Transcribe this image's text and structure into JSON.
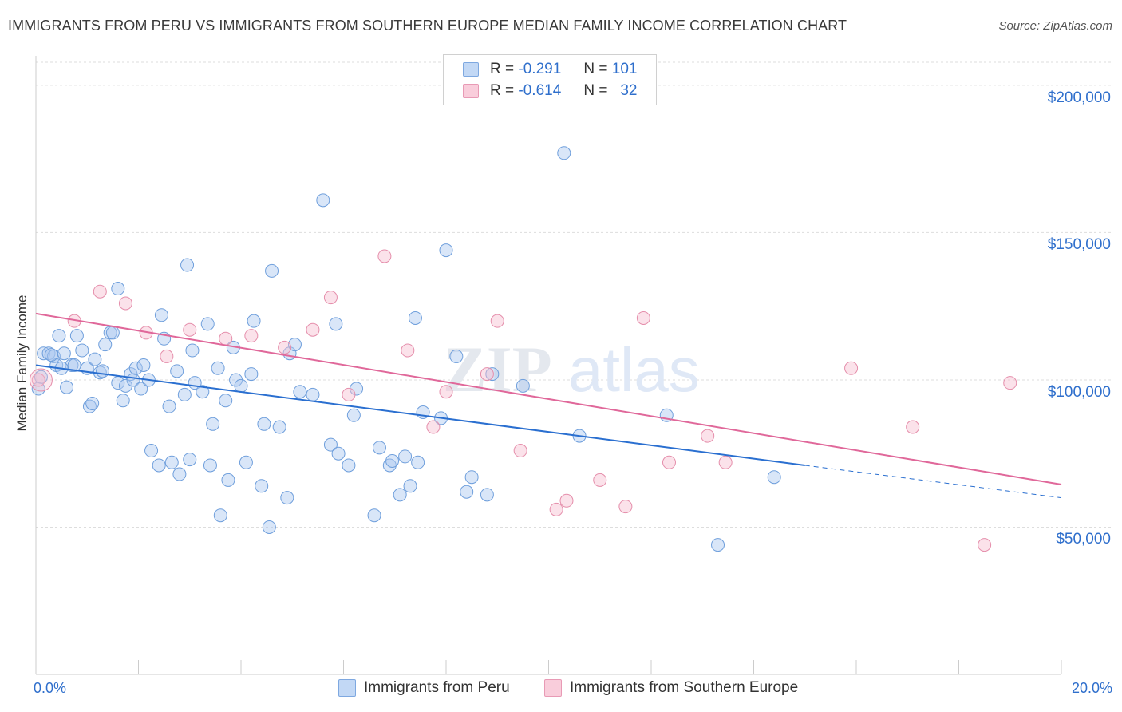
{
  "title": "IMMIGRANTS FROM PERU VS IMMIGRANTS FROM SOUTHERN EUROPE MEDIAN FAMILY INCOME CORRELATION CHART",
  "source": "Source: ZipAtlas.com",
  "watermark": {
    "zip": "ZIP",
    "atlas": "atlas"
  },
  "legend": {
    "r_label": "R =",
    "n_label": "N =",
    "peru": {
      "r": "-0.291",
      "n": "101"
    },
    "seurope": {
      "r": "-0.614",
      "n": "32"
    }
  },
  "colors": {
    "peru_fill": "#aac8f0",
    "peru_stroke": "#6f9fdc",
    "peru_line": "#2a6fd0",
    "seurope_fill": "#f7bfd1",
    "seurope_stroke": "#e58eab",
    "seurope_line": "#e0689a",
    "tick_text": "#2f6fcc",
    "grid": "#dddddd"
  },
  "chart_data": {
    "type": "scatter",
    "title": "IMMIGRANTS FROM PERU VS IMMIGRANTS FROM SOUTHERN EUROPE MEDIAN FAMILY INCOME CORRELATION CHART",
    "xlabel": "",
    "ylabel": "Median Family Income",
    "xlim": [
      0,
      20
    ],
    "ylim": [
      0,
      210000
    ],
    "x_tick_labels": [
      "0.0%",
      "20.0%"
    ],
    "y_ticks": [
      50000,
      100000,
      150000,
      200000
    ],
    "y_tick_labels": [
      "$50,000",
      "$100,000",
      "$150,000",
      "$200,000"
    ],
    "grid": true,
    "legend_position": "top-center",
    "series": [
      {
        "name": "Immigrants from Peru",
        "trend": {
          "x": [
            0,
            15
          ],
          "y": [
            105000,
            71000
          ],
          "dashed_to": [
            20,
            60000
          ]
        },
        "points": [
          [
            0.05,
            97000
          ],
          [
            0.1,
            101000
          ],
          [
            0.15,
            109000
          ],
          [
            0.25,
            109000
          ],
          [
            0.35,
            108000
          ],
          [
            0.4,
            105000
          ],
          [
            0.45,
            115000
          ],
          [
            0.55,
            109000
          ],
          [
            0.6,
            97500
          ],
          [
            0.7,
            105000
          ],
          [
            0.75,
            105000
          ],
          [
            0.8,
            115000
          ],
          [
            0.9,
            110000
          ],
          [
            1.0,
            104000
          ],
          [
            1.05,
            91000
          ],
          [
            1.1,
            92000
          ],
          [
            1.15,
            107000
          ],
          [
            1.25,
            102500
          ],
          [
            1.35,
            112000
          ],
          [
            1.45,
            116000
          ],
          [
            1.5,
            116000
          ],
          [
            1.6,
            99000
          ],
          [
            1.7,
            93000
          ],
          [
            1.75,
            98000
          ],
          [
            1.85,
            102000
          ],
          [
            1.9,
            100000
          ],
          [
            1.95,
            104000
          ],
          [
            2.05,
            97000
          ],
          [
            2.1,
            105000
          ],
          [
            2.2,
            100000
          ],
          [
            2.25,
            76000
          ],
          [
            2.4,
            71000
          ],
          [
            2.45,
            122000
          ],
          [
            2.5,
            114000
          ],
          [
            2.6,
            91000
          ],
          [
            2.65,
            72000
          ],
          [
            2.75,
            103000
          ],
          [
            2.8,
            68000
          ],
          [
            2.9,
            95000
          ],
          [
            2.95,
            139000
          ],
          [
            3.0,
            73000
          ],
          [
            3.05,
            110000
          ],
          [
            3.1,
            99000
          ],
          [
            3.25,
            96000
          ],
          [
            3.35,
            119000
          ],
          [
            3.4,
            71000
          ],
          [
            3.45,
            85000
          ],
          [
            3.55,
            104000
          ],
          [
            3.6,
            54000
          ],
          [
            3.7,
            93000
          ],
          [
            3.75,
            66000
          ],
          [
            3.85,
            111000
          ],
          [
            3.9,
            100000
          ],
          [
            4.0,
            98000
          ],
          [
            4.1,
            72000
          ],
          [
            4.2,
            102000
          ],
          [
            4.25,
            120000
          ],
          [
            4.4,
            64000
          ],
          [
            4.45,
            85000
          ],
          [
            4.55,
            50000
          ],
          [
            4.6,
            137000
          ],
          [
            4.75,
            84000
          ],
          [
            4.9,
            60000
          ],
          [
            4.95,
            109000
          ],
          [
            5.05,
            112000
          ],
          [
            5.15,
            96000
          ],
          [
            5.4,
            95000
          ],
          [
            5.6,
            161000
          ],
          [
            5.75,
            78000
          ],
          [
            5.85,
            119000
          ],
          [
            5.9,
            75000
          ],
          [
            6.1,
            71000
          ],
          [
            6.2,
            88000
          ],
          [
            6.25,
            97000
          ],
          [
            6.6,
            54000
          ],
          [
            6.7,
            77000
          ],
          [
            6.9,
            71000
          ],
          [
            7.1,
            61000
          ],
          [
            7.2,
            74000
          ],
          [
            7.3,
            64000
          ],
          [
            7.4,
            121000
          ],
          [
            7.45,
            72000
          ],
          [
            7.55,
            89000
          ],
          [
            7.9,
            87000
          ],
          [
            8.2,
            108000
          ],
          [
            8.4,
            62000
          ],
          [
            8.5,
            67000
          ],
          [
            8.8,
            61000
          ],
          [
            8.9,
            102000
          ],
          [
            9.5,
            98000
          ],
          [
            10.3,
            177000
          ],
          [
            10.6,
            81000
          ],
          [
            12.3,
            88000
          ],
          [
            13.3,
            44000
          ],
          [
            14.4,
            67000
          ],
          [
            8.0,
            144000
          ],
          [
            1.6,
            131000
          ],
          [
            0.3,
            108500
          ],
          [
            0.5,
            104000
          ],
          [
            6.95,
            72500
          ],
          [
            1.3,
            103000
          ]
        ]
      },
      {
        "name": "Immigrants from Southern Europe",
        "trend": {
          "x": [
            0,
            20
          ],
          "y": [
            122500,
            64500
          ]
        },
        "points": [
          [
            0.05,
            100000
          ],
          [
            0.75,
            120000
          ],
          [
            1.25,
            130000
          ],
          [
            1.75,
            126000
          ],
          [
            2.15,
            116000
          ],
          [
            2.55,
            108000
          ],
          [
            3.0,
            117000
          ],
          [
            3.7,
            114000
          ],
          [
            4.2,
            115000
          ],
          [
            4.85,
            111000
          ],
          [
            5.4,
            117000
          ],
          [
            5.75,
            128000
          ],
          [
            6.1,
            95000
          ],
          [
            6.8,
            142000
          ],
          [
            7.25,
            110000
          ],
          [
            7.75,
            84000
          ],
          [
            8.0,
            96000
          ],
          [
            8.8,
            102000
          ],
          [
            9.0,
            120000
          ],
          [
            9.45,
            76000
          ],
          [
            10.15,
            56000
          ],
          [
            10.35,
            59000
          ],
          [
            11.0,
            66000
          ],
          [
            11.5,
            57000
          ],
          [
            11.85,
            121000
          ],
          [
            12.35,
            72000
          ],
          [
            13.1,
            81000
          ],
          [
            13.45,
            72000
          ],
          [
            15.9,
            104000
          ],
          [
            17.1,
            84000
          ],
          [
            18.5,
            44000
          ],
          [
            19.0,
            99000
          ]
        ]
      }
    ]
  },
  "bottom_legend": {
    "peru": "Immigrants from Peru",
    "seurope": "Immigrants from Southern Europe"
  }
}
